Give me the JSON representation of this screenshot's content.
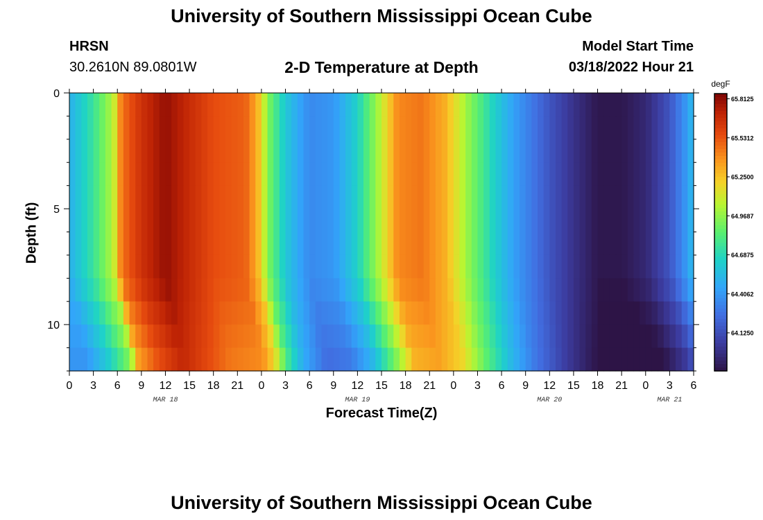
{
  "header": {
    "title": "University of Southern Mississippi Ocean Cube",
    "station": "HRSN",
    "coordinates": "30.2610N  89.0801W",
    "subtitle": "2-D Temperature at Depth",
    "model_start_label": "Model Start Time",
    "model_start_value": "03/18/2022 Hour 21"
  },
  "footer": {
    "title": "University of Southern Mississippi Ocean Cube"
  },
  "chart_data": {
    "type": "heatmap",
    "xlabel": "Forecast Time(Z)",
    "ylabel": "Depth (ft)",
    "xlim_hours": [
      0,
      78
    ],
    "ylim": [
      0,
      12
    ],
    "y_inverted": true,
    "x_tick_labels": [
      "0",
      "3",
      "6",
      "9",
      "12",
      "15",
      "18",
      "21",
      "0",
      "3",
      "6",
      "9",
      "12",
      "15",
      "18",
      "21",
      "0",
      "3",
      "6",
      "9",
      "12",
      "15",
      "18",
      "21",
      "0",
      "3",
      "6"
    ],
    "y_ticks": [
      0,
      5,
      10
    ],
    "day_labels": [
      {
        "label": "MAR 18",
        "hour": 12
      },
      {
        "label": "MAR 19",
        "hour": 36
      },
      {
        "label": "MAR 20",
        "hour": 60
      },
      {
        "label": "MAR 21",
        "hour": 75
      }
    ],
    "colorbar": {
      "unit": "degF",
      "tick_labels": [
        "65.8125",
        "65.5312",
        "65.2500",
        "64.9687",
        "64.6875",
        "64.4062",
        "64.1250"
      ],
      "tick_values": [
        65.8125,
        65.53125,
        65.25,
        64.96875,
        64.6875,
        64.40625,
        64.125
      ],
      "range": [
        63.85,
        65.85
      ]
    },
    "surface_temperature_profile": [
      {
        "hour": 0,
        "value": 64.5
      },
      {
        "hour": 3,
        "value": 64.75
      },
      {
        "hour": 5.5,
        "value": 65.05
      },
      {
        "hour": 6.5,
        "value": 65.45
      },
      {
        "hour": 9,
        "value": 65.65
      },
      {
        "hour": 12,
        "value": 65.8
      },
      {
        "hour": 18,
        "value": 65.55
      },
      {
        "hour": 22,
        "value": 65.5
      },
      {
        "hour": 23.5,
        "value": 65.3
      },
      {
        "hour": 25,
        "value": 64.9
      },
      {
        "hour": 27,
        "value": 64.6
      },
      {
        "hour": 30,
        "value": 64.35
      },
      {
        "hour": 33,
        "value": 64.4
      },
      {
        "hour": 36,
        "value": 64.65
      },
      {
        "hour": 38.5,
        "value": 65.0
      },
      {
        "hour": 41,
        "value": 65.4
      },
      {
        "hour": 44,
        "value": 65.45
      },
      {
        "hour": 47,
        "value": 65.3
      },
      {
        "hour": 50,
        "value": 64.95
      },
      {
        "hour": 53,
        "value": 64.65
      },
      {
        "hour": 56,
        "value": 64.4
      },
      {
        "hour": 60,
        "value": 64.15
      },
      {
        "hour": 63,
        "value": 64.0
      },
      {
        "hour": 66,
        "value": 63.87
      },
      {
        "hour": 69,
        "value": 63.87
      },
      {
        "hour": 72,
        "value": 63.95
      },
      {
        "hour": 75,
        "value": 64.15
      },
      {
        "hour": 77,
        "value": 64.4
      },
      {
        "hour": 78,
        "value": 64.55
      }
    ]
  }
}
